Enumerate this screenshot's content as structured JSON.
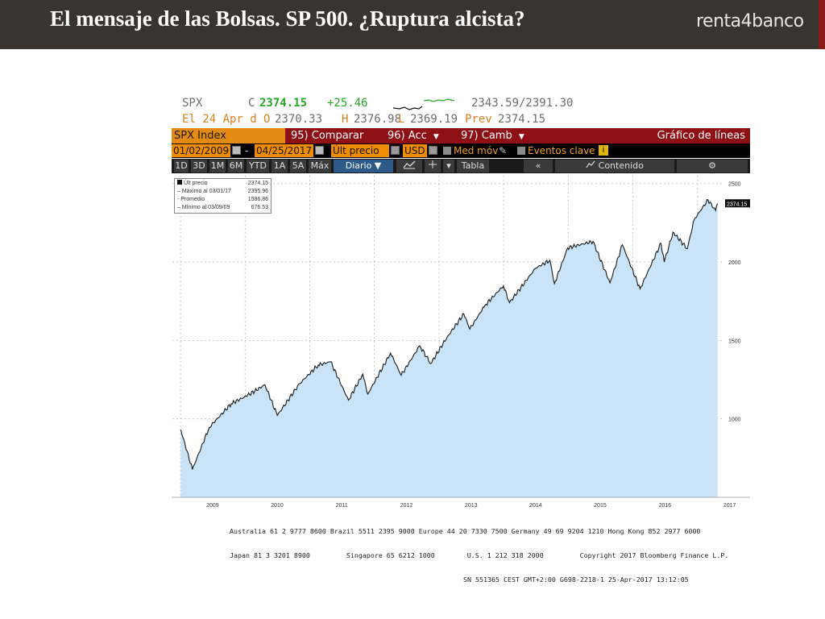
{
  "slide": {
    "title": "El mensaje de las Bolsas. SP 500. ¿Ruptura alcista?",
    "brand": "renta4banco"
  },
  "quote": {
    "ticker": "SPX",
    "c_label": "C",
    "last": "2374.15",
    "change": "+25.46",
    "range": "2343.59/2391.30",
    "date_label": "El 24 Apr d",
    "o_label": "O",
    "open": "2370.33",
    "h_label": "H",
    "high": "2376.98",
    "l_label": "L",
    "low": "2369.19",
    "prev_label": "Prev",
    "prev": "2374.15"
  },
  "menubar": {
    "index": "SPX Index",
    "compare_num": "95)",
    "compare": "Comparar",
    "actions_num": "96)",
    "actions": "Acc",
    "edit_num": "97)",
    "edit": "Camb",
    "chart_title": "Gráfico de líneas"
  },
  "options": {
    "start_date": "01/02/2009",
    "dash": "-",
    "end_date": "04/25/2017",
    "field": "Últ precio",
    "currency": "USD",
    "mov_avg": "Med móv",
    "events": "Eventos clave",
    "events_key": "i"
  },
  "toolbar": {
    "ranges": [
      "1D",
      "3D",
      "1M",
      "6M",
      "YTD",
      "1A",
      "5A",
      "Máx"
    ],
    "period": "Diario ▼",
    "table": "Tabla",
    "back": "«",
    "content": "Contenido",
    "settings": "⚙"
  },
  "legend": [
    {
      "label": "Últ precio",
      "value": "2374.15"
    },
    {
      "label": "Máximo al 03/01/17",
      "value": "2395.96"
    },
    {
      "label": "Promedio",
      "value": "1586.86"
    },
    {
      "label": "Mínimo al 03/09/09",
      "value": "676.53"
    }
  ],
  "footer": {
    "line1": "Australia 61 2 9777 8600 Brazil 5511 2395 9000 Europe 44 20 7330 7500 Germany 49 69 9204 1210 Hong Kong 852 2977 6000",
    "line2": "Japan 81 3 3201 8900         Singapore 65 6212 1000        U.S. 1 212 318 2000         Copyright 2017 Bloomberg Finance L.P.",
    "line3": "SN 551365 CEST GMT+2:00 G698-2218-1 25-Apr-2017 13:12:05"
  },
  "colors": {
    "header_bg": "#3a3431",
    "menubar_red": "#8e0f14",
    "orange": "#f08c00",
    "area_fill": "#c9e4f8",
    "line": "#1a1a1a"
  },
  "chart_data": {
    "type": "area",
    "x": [
      "2009-01-02",
      "2009-03-09",
      "2009-06-12",
      "2009-10-15",
      "2010-01-15",
      "2010-04-23",
      "2010-07-02",
      "2010-11-05",
      "2011-02-18",
      "2011-04-29",
      "2011-08-08",
      "2011-10-28",
      "2011-11-25",
      "2012-04-02",
      "2012-06-01",
      "2012-09-14",
      "2012-11-15",
      "2013-02-15",
      "2013-05-21",
      "2013-06-24",
      "2013-09-18",
      "2013-12-31",
      "2014-02-03",
      "2014-06-30",
      "2014-09-19",
      "2014-10-15",
      "2014-12-29",
      "2015-05-21",
      "2015-08-25",
      "2015-11-03",
      "2016-02-11",
      "2016-06-08",
      "2016-06-27",
      "2016-08-15",
      "2016-11-04",
      "2016-12-13",
      "2017-03-01",
      "2017-04-13",
      "2017-04-24"
    ],
    "values": [
      931,
      677,
      946,
      1097,
      1150,
      1217,
      1022,
      1225,
      1343,
      1364,
      1119,
      1285,
      1158,
      1419,
      1278,
      1466,
      1353,
      1520,
      1669,
      1573,
      1725,
      1848,
      1741,
      1960,
      2011,
      1862,
      2090,
      2131,
      1867,
      2109,
      1829,
      2119,
      2000,
      2190,
      2085,
      2271,
      2396,
      2328,
      2374
    ],
    "xlabel": "",
    "ylabel": "",
    "yticks": [
      1000,
      1500,
      2000,
      2500
    ],
    "xticks": [
      "2009",
      "2010",
      "2011",
      "2012",
      "2013",
      "2014",
      "2015",
      "2016",
      "2017"
    ],
    "ylim": [
      500,
      2550
    ],
    "last_label": "2374.15",
    "grid": true
  }
}
